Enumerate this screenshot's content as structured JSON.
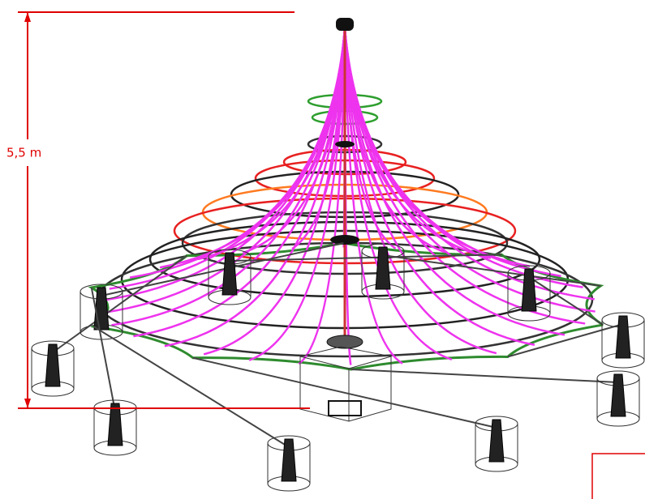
{
  "dimension": {
    "label": "5,5 m"
  }
}
